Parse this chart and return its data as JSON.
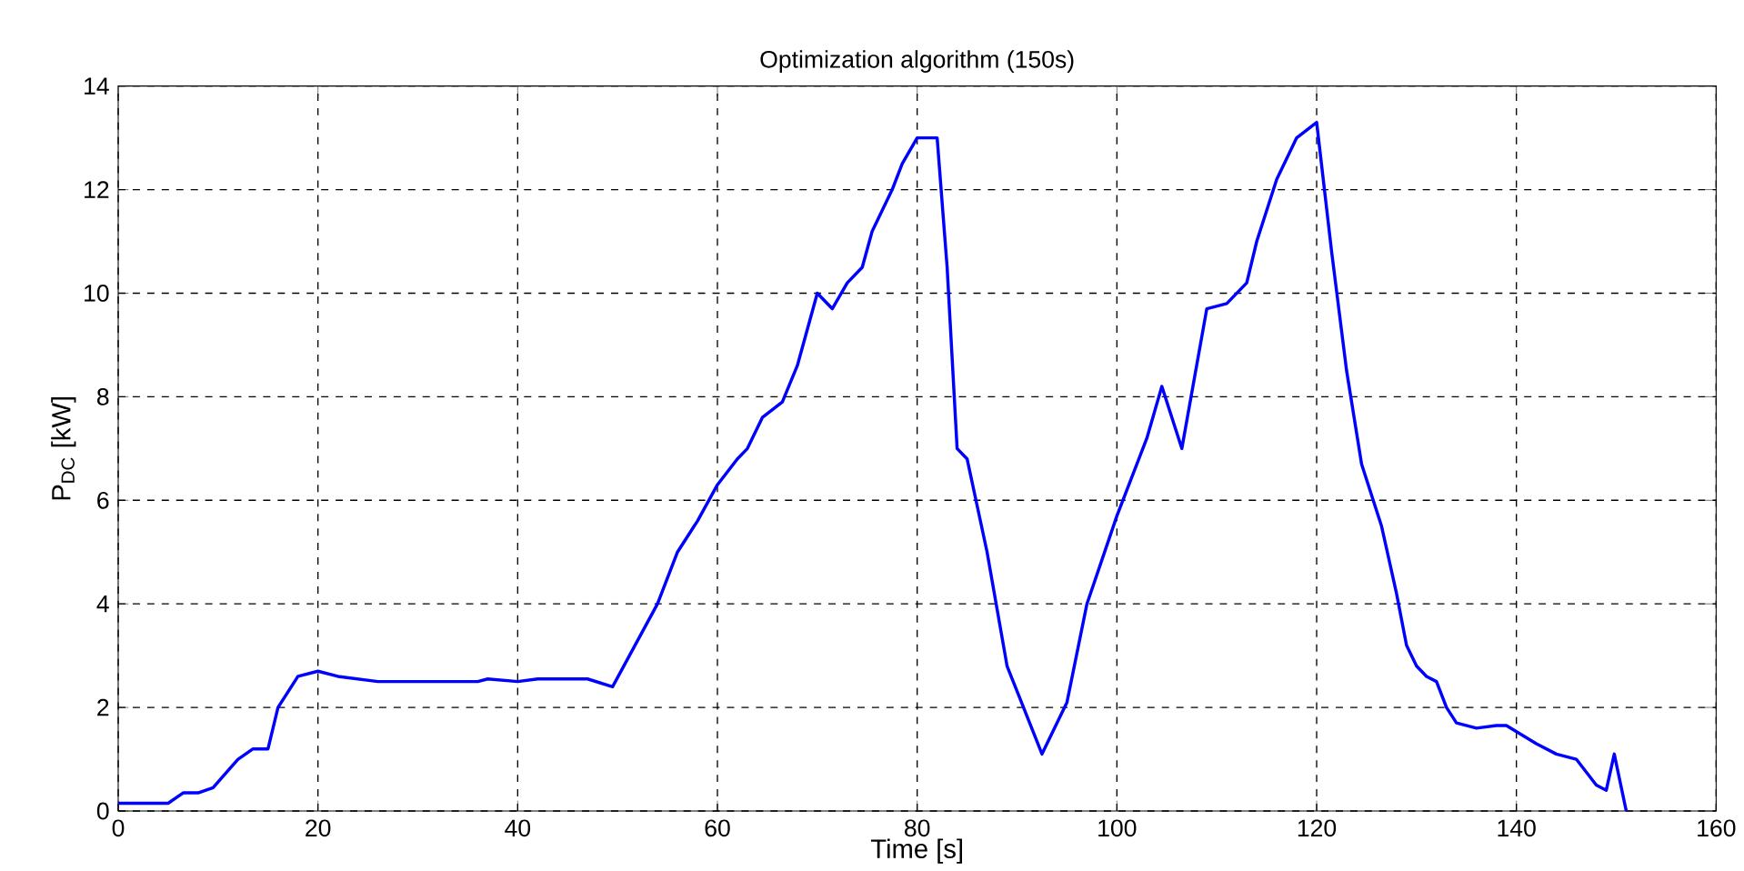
{
  "chart_data": {
    "type": "line",
    "title": "Optimization algorithm (150s)",
    "xlabel": "Time [s]",
    "ylabel": "P$_{DC}$ [kW]",
    "xlim": [
      0,
      160
    ],
    "ylim": [
      0,
      14
    ],
    "xticks": [
      0,
      20,
      40,
      60,
      80,
      100,
      120,
      140,
      160
    ],
    "yticks": [
      0,
      2,
      4,
      6,
      8,
      10,
      12,
      14
    ],
    "grid": true,
    "series": [
      {
        "color": "#0000ff",
        "x": [
          0,
          5,
          6.5,
          8,
          9.5,
          12,
          13.5,
          15,
          16,
          18,
          20,
          22,
          26,
          36,
          37,
          40,
          42,
          47,
          49.5,
          54,
          56,
          58,
          60,
          62,
          63,
          64.5,
          66.5,
          68,
          70,
          71.5,
          73,
          74.5,
          75.5,
          77.5,
          78.5,
          80,
          82,
          83,
          84,
          85,
          87,
          89,
          92.5,
          95,
          97,
          100,
          103,
          104.5,
          106.5,
          109,
          111,
          113,
          114,
          116,
          118,
          120,
          121.5,
          123,
          124.5,
          126.5,
          128,
          129,
          130,
          131,
          132,
          133,
          134,
          136,
          138,
          139,
          142,
          144,
          146,
          148,
          149,
          149.8,
          151
        ],
        "values": [
          0.15,
          0.15,
          0.35,
          0.35,
          0.45,
          1.0,
          1.2,
          1.2,
          2.0,
          2.6,
          2.7,
          2.6,
          2.5,
          2.5,
          2.55,
          2.5,
          2.55,
          2.55,
          2.4,
          4.0,
          5.0,
          5.6,
          6.3,
          6.8,
          7.0,
          7.6,
          7.9,
          8.6,
          10.0,
          9.7,
          10.2,
          10.5,
          11.2,
          12.0,
          12.5,
          13.0,
          13.0,
          10.5,
          7.0,
          6.8,
          5.0,
          2.8,
          1.1,
          2.1,
          4.0,
          5.7,
          7.2,
          8.2,
          7.0,
          9.7,
          9.8,
          10.2,
          11.0,
          12.2,
          13.0,
          13.3,
          10.8,
          8.5,
          6.7,
          5.5,
          4.2,
          3.2,
          2.8,
          2.6,
          2.5,
          2.0,
          1.7,
          1.6,
          1.65,
          1.65,
          1.3,
          1.1,
          1.0,
          0.5,
          0.4,
          1.1,
          0
        ]
      }
    ]
  }
}
